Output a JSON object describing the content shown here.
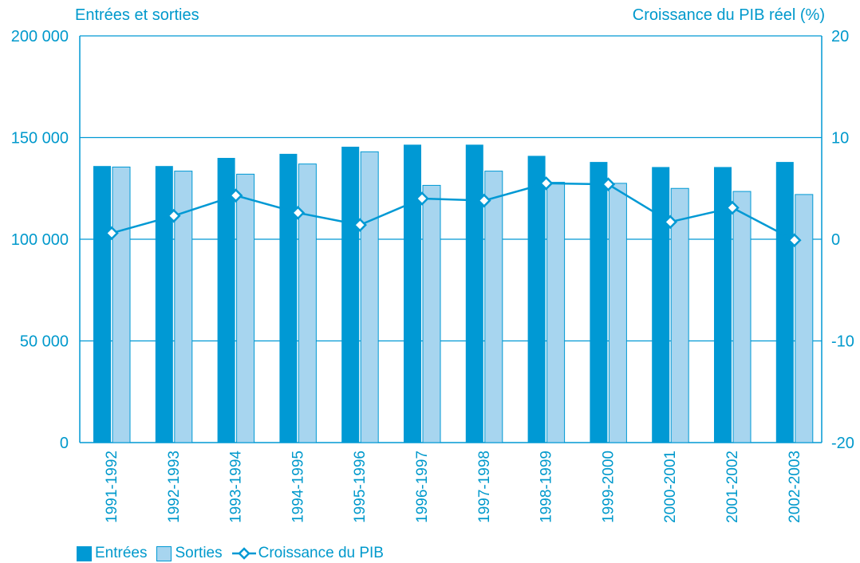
{
  "colors": {
    "entrees": "#0099d4",
    "sorties": "#a7d5ef",
    "line": "#0099d4",
    "text": "#0099cc"
  },
  "chart_data": {
    "type": "bar",
    "left_axis_title": "Entrées et sorties",
    "right_axis_title": "Croissance du PIB réel (%)",
    "categories": [
      "1991-1992",
      "1992-1993",
      "1993-1994",
      "1994-1995",
      "1995-1996",
      "1996-1997",
      "1997-1998",
      "1998-1999",
      "1999-2000",
      "2000-2001",
      "2001-2002",
      "2002-2003"
    ],
    "series": [
      {
        "name": "Entrées",
        "type": "bar",
        "axis": "left",
        "values": [
          136000,
          136000,
          140000,
          142000,
          145500,
          146500,
          146500,
          141000,
          138000,
          135500,
          135500,
          138000
        ]
      },
      {
        "name": "Sorties",
        "type": "bar",
        "axis": "left",
        "values": [
          135500,
          133500,
          132000,
          137000,
          143000,
          126500,
          133500,
          128000,
          127500,
          125000,
          123500,
          122000
        ]
      },
      {
        "name": "Croissance du PIB",
        "type": "line",
        "axis": "right",
        "values": [
          0.6,
          2.3,
          4.3,
          2.6,
          1.4,
          4.0,
          3.8,
          5.5,
          5.4,
          1.7,
          3.1,
          -0.1
        ]
      }
    ],
    "left_axis": {
      "min": 0,
      "max": 200000,
      "ticks": [
        0,
        50000,
        100000,
        150000,
        200000
      ],
      "tick_labels": [
        "0",
        "50 000",
        "100 000",
        "150 000",
        "200 000"
      ]
    },
    "right_axis": {
      "min": -20,
      "max": 20,
      "ticks": [
        -20,
        -10,
        0,
        10,
        20
      ],
      "tick_labels": [
        "-20",
        "-10",
        "0",
        "10",
        "20"
      ]
    },
    "grid": true,
    "legend": "bottom-left"
  },
  "legend": {
    "entrees": "Entrées",
    "sorties": "Sorties",
    "pib": "Croissance du PIB"
  }
}
